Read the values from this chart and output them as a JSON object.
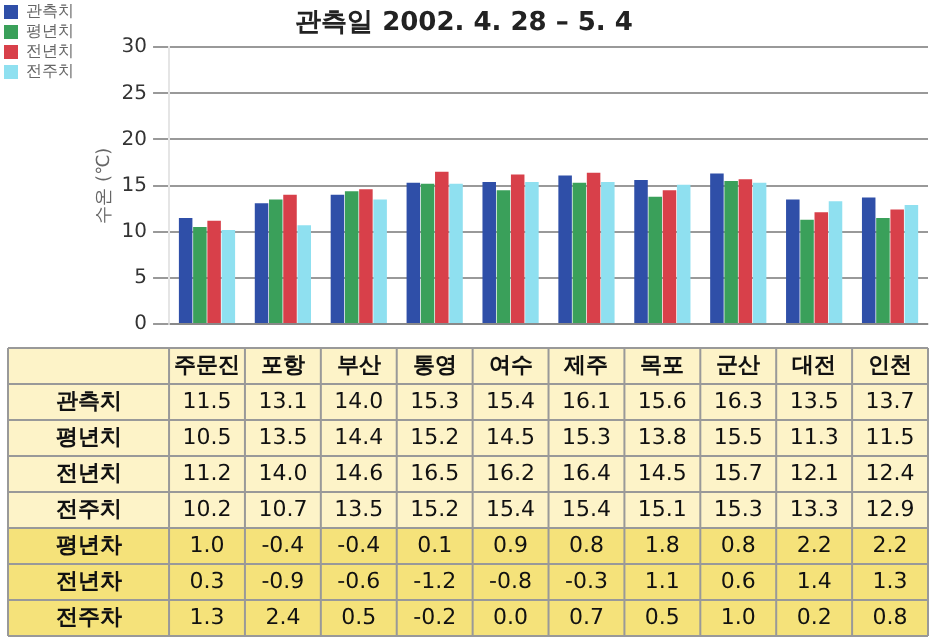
{
  "chart_data": {
    "type": "bar",
    "title": "관측일 2002. 4. 28 – 5. 4",
    "ylabel": "수온 (℃)",
    "categories": [
      "주문진",
      "포항",
      "부산",
      "통영",
      "여수",
      "제주",
      "목포",
      "군산",
      "대전",
      "인천"
    ],
    "series": [
      {
        "name": "관측치",
        "color": "#2f4fa8",
        "values": [
          11.5,
          13.1,
          14.0,
          15.3,
          15.4,
          16.1,
          15.6,
          16.3,
          13.5,
          13.7
        ],
        "value_labels": [
          "11.5",
          "13.1",
          "14.0",
          "15.3",
          "15.4",
          "16.1",
          "15.6",
          "16.3",
          "13.5",
          "13.7"
        ]
      },
      {
        "name": "평년치",
        "color": "#3aa05a",
        "values": [
          10.5,
          13.5,
          14.4,
          15.2,
          14.5,
          15.3,
          13.8,
          15.5,
          11.3,
          11.5
        ],
        "value_labels": [
          "10.5",
          "13.5",
          "14.4",
          "15.2",
          "14.5",
          "15.3",
          "13.8",
          "15.5",
          "11.3",
          "11.5"
        ]
      },
      {
        "name": "전년치",
        "color": "#d8404a",
        "values": [
          11.2,
          14.0,
          14.6,
          16.5,
          16.2,
          16.4,
          14.5,
          15.7,
          12.1,
          12.4
        ],
        "value_labels": [
          "11.2",
          "14.0",
          "14.6",
          "16.5",
          "16.2",
          "16.4",
          "14.5",
          "15.7",
          "12.1",
          "12.4"
        ]
      },
      {
        "name": "전주치",
        "color": "#8fe0f0",
        "values": [
          10.2,
          10.7,
          13.5,
          15.2,
          15.4,
          15.4,
          15.1,
          15.3,
          13.3,
          12.9
        ],
        "value_labels": [
          "10.2",
          "10.7",
          "13.5",
          "15.2",
          "15.4",
          "15.4",
          "15.1",
          "15.3",
          "13.3",
          "12.9"
        ]
      }
    ],
    "ylim": [
      0,
      30
    ],
    "yticks": [
      0,
      5,
      10,
      15,
      20,
      25,
      30
    ],
    "grid": "y",
    "legend": "left",
    "annotations": [
      "평년차",
      "1.0",
      "-0.4",
      "-0.4",
      "0.1",
      "0.9",
      "0.8",
      "1.8",
      "0.8",
      "2.2",
      "2.2",
      "전년차",
      "0.3",
      "-0.9",
      "-0.6",
      "-1.2",
      "-0.8",
      "-0.3",
      "1.1",
      "0.6",
      "1.4",
      "1.3",
      "전주차",
      "1.3",
      "2.4",
      "0.5",
      "-0.2",
      "0.0",
      "0.7",
      "0.5",
      "1.0",
      "0.2",
      "0.8"
    ]
  }
}
